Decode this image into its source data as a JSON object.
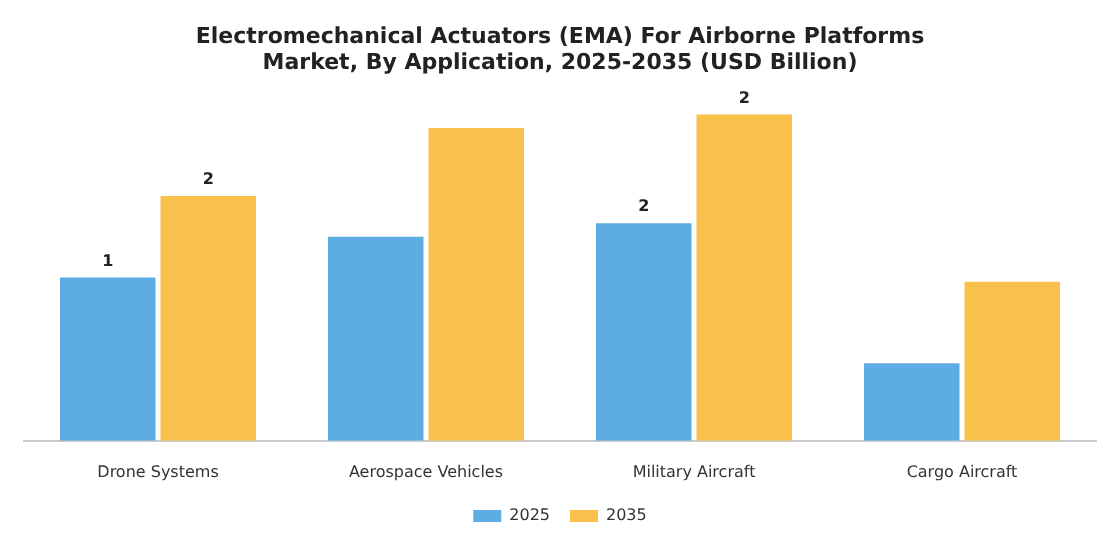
{
  "chart_data": {
    "type": "bar",
    "title": "Electromechanical Actuators (EMA) For Airborne Platforms Market, By Application, 2025-2035 (USD Billion)",
    "categories": [
      "Drone Systems",
      "Aerospace Vehicles",
      "Military Aircraft",
      "Cargo Aircraft"
    ],
    "tick_labels": "x",
    "legend": "bottom",
    "series": [
      {
        "name": "2025",
        "color": "#5dade2",
        "values": [
          1.2,
          1.5,
          1.6,
          0.57
        ],
        "value_labels": [
          "1",
          null,
          "2",
          null
        ]
      },
      {
        "name": "2035",
        "color": "#f9c04c",
        "values": [
          1.8,
          2.3,
          2.4,
          1.17
        ],
        "value_labels": [
          "2",
          null,
          "2",
          null
        ]
      }
    ]
  }
}
